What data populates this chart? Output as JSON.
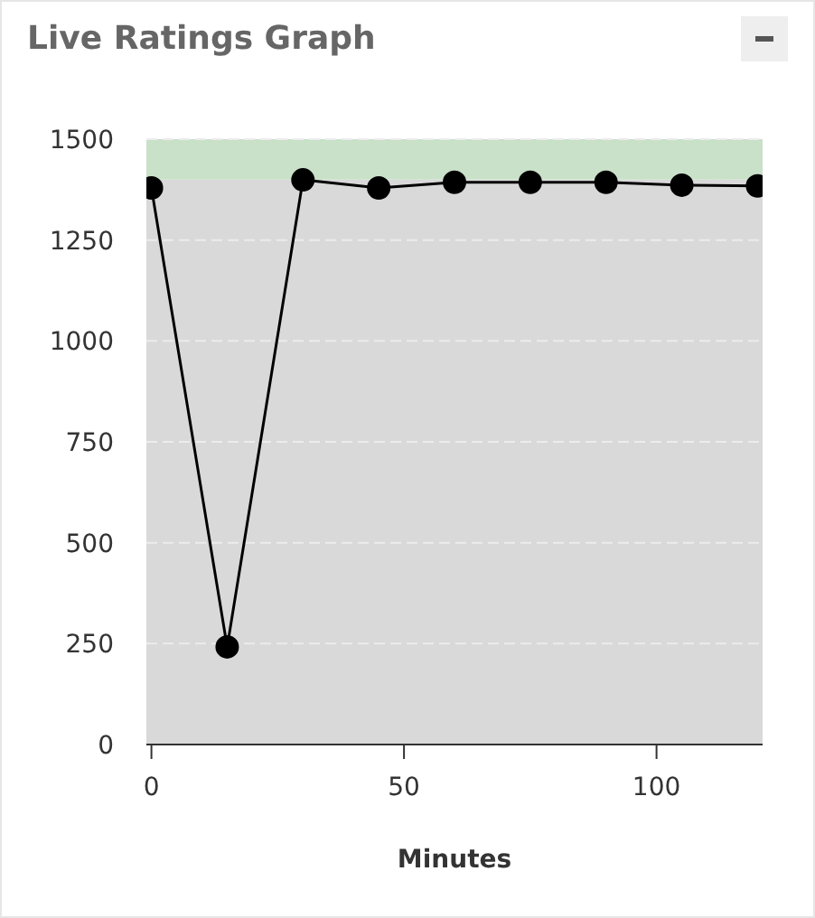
{
  "chart_data": {
    "type": "line",
    "title": "Live Ratings Graph",
    "xlabel": "Minutes",
    "x": [
      0,
      15,
      30,
      45,
      60,
      75,
      90,
      105,
      120
    ],
    "series": [
      {
        "color": "#000000",
        "values": [
          1379,
          242,
          1399,
          1379,
          1393,
          1393,
          1393,
          1386,
          1384
        ]
      }
    ],
    "xlim": [
      -1,
      121
    ],
    "xticks": [
      0,
      50,
      100
    ],
    "ylim": [
      0,
      1500
    ],
    "yticks": [
      0,
      250,
      500,
      750,
      1000,
      1250,
      1500
    ],
    "bands": [
      {
        "axis": "y",
        "from": 0,
        "to": 1400,
        "color": "#d9d9d9"
      },
      {
        "axis": "y",
        "from": 1400,
        "to": 1500,
        "color": "#c9e0c9"
      }
    ],
    "grid": "y",
    "legend": false,
    "marker": "circle",
    "line_style": "solid"
  }
}
